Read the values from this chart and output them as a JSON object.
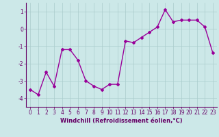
{
  "x": [
    0,
    1,
    2,
    3,
    4,
    5,
    6,
    7,
    8,
    9,
    10,
    11,
    12,
    13,
    14,
    15,
    16,
    17,
    18,
    19,
    20,
    21,
    22,
    23
  ],
  "y": [
    -3.5,
    -3.8,
    -2.5,
    -3.3,
    -1.2,
    -1.2,
    -1.8,
    -3.0,
    -3.3,
    -3.5,
    -3.2,
    -3.2,
    -0.7,
    -0.8,
    -0.5,
    -0.2,
    0.1,
    1.1,
    0.4,
    0.5,
    0.5,
    0.5,
    0.1,
    -1.4
  ],
  "line_color": "#990099",
  "marker": "D",
  "marker_size": 2.0,
  "bg_color": "#cce8e8",
  "grid_color": "#aacccc",
  "xlabel": "Windchill (Refroidissement éolien,°C)",
  "ylim": [
    -4.5,
    1.5
  ],
  "xlim": [
    -0.5,
    23.5
  ],
  "yticks": [
    -4,
    -3,
    -2,
    -1,
    0,
    1
  ],
  "xticks": [
    0,
    1,
    2,
    3,
    4,
    5,
    6,
    7,
    8,
    9,
    10,
    11,
    12,
    13,
    14,
    15,
    16,
    17,
    18,
    19,
    20,
    21,
    22,
    23
  ],
  "axis_color": "#660066",
  "tick_label_color": "#660066",
  "xlabel_color": "#660066",
  "line_width": 1.0,
  "tick_fontsize": 5.5,
  "xlabel_fontsize": 6.0
}
